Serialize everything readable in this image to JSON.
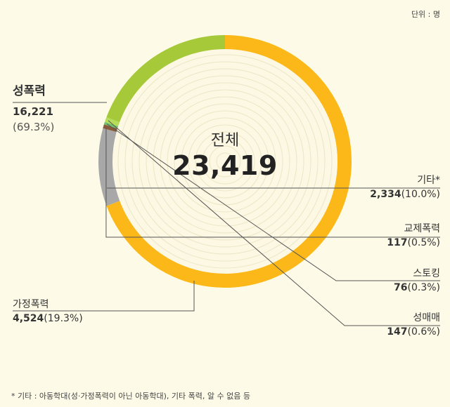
{
  "unit_note": "단위 : 명",
  "footnote": "* 기타 : 아동학대(성·가정폭력이 아닌 아동학대), 기타 폭력, 알 수 없음 등",
  "chart_data": {
    "type": "pie",
    "center_title": "전체",
    "total": "23,419",
    "categories": [
      "성폭력",
      "기타*",
      "교제폭력",
      "스토킹",
      "성매매",
      "가정폭력"
    ],
    "values": [
      16221,
      2334,
      117,
      76,
      147,
      4524
    ],
    "value_labels": [
      "16,221",
      "2,334",
      "117",
      "76",
      "147",
      "4,524"
    ],
    "percent_labels": [
      "(69.3%)",
      "(10.0%)",
      "(0.5%)",
      "(0.3%)",
      "(0.6%)",
      "(19.3%)"
    ],
    "colors": [
      "#fbb818",
      "#a8a8a8",
      "#8a5a3a",
      "#6fc06a",
      "#b6dd58",
      "#a6c93a"
    ],
    "start_angle_deg": 0,
    "legend": "none"
  }
}
